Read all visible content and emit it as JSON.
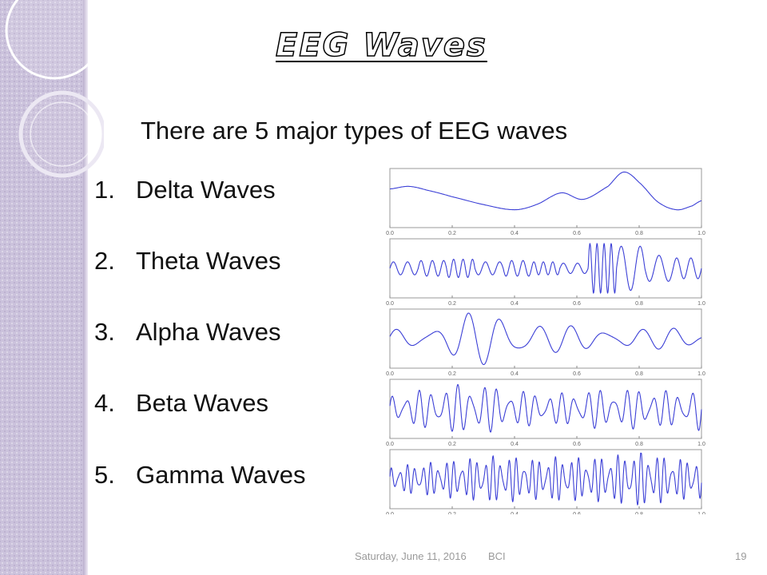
{
  "slide": {
    "title": "EEG Waves",
    "subtitle": "There are 5 major types of EEG waves",
    "list": [
      {
        "num": "1.",
        "label": "Delta Waves"
      },
      {
        "num": "2.",
        "label": "Theta Waves"
      },
      {
        "num": "3.",
        "label": "Alpha Waves"
      },
      {
        "num": "4.",
        "label": "Beta Waves"
      },
      {
        "num": "5.",
        "label": "Gamma Waves"
      }
    ],
    "footer": {
      "date": "Saturday, June 11, 2016",
      "topic": "BCI",
      "page": "19"
    }
  },
  "colors": {
    "side_panel": "#cbc2dc",
    "trace": "#3b3fd6",
    "text": "#111111"
  },
  "chart_data": {
    "type": "line",
    "x_ticks": [
      "0.0",
      "0.2",
      "0.4",
      "0.6",
      "0.8",
      "1.0"
    ],
    "xlim": [
      0,
      1
    ],
    "grid": false,
    "series": [
      {
        "points": [
          [
            0,
            0.35
          ],
          [
            0.06,
            0.45
          ],
          [
            0.12,
            0.3
          ],
          [
            0.2,
            0.05
          ],
          [
            0.3,
            -0.25
          ],
          [
            0.4,
            -0.45
          ],
          [
            0.47,
            -0.25
          ],
          [
            0.55,
            0.2
          ],
          [
            0.62,
            -0.05
          ],
          [
            0.7,
            0.45
          ],
          [
            0.75,
            1.0
          ],
          [
            0.8,
            0.6
          ],
          [
            0.86,
            -0.15
          ],
          [
            0.92,
            -0.45
          ],
          [
            0.97,
            -0.3
          ],
          [
            1.0,
            -0.1
          ]
        ]
      },
      {
        "cycles": [
          2,
          2.5,
          3,
          2,
          2.5,
          3,
          2,
          4,
          1.5,
          1.5,
          2
        ],
        "amps": [
          0.25,
          0.3,
          0.35,
          0.25,
          0.3,
          0.25,
          0.2,
          0.95,
          0.85,
          0.5,
          0.4
        ]
      },
      {
        "cycles": [
          9
        ],
        "amps": [
          0.35,
          0.45,
          0.55,
          0.9,
          1.0,
          0.9,
          0.55,
          0.45,
          0.4,
          0.45,
          0.35,
          0.4,
          0.3
        ]
      },
      {
        "cycles": [
          24
        ],
        "amps": [
          0.5,
          0.65,
          0.8,
          0.95,
          0.7,
          0.6,
          0.55,
          0.7,
          0.65,
          0.75,
          0.6,
          0.8
        ]
      },
      {
        "cycles": [
          40
        ],
        "amps": [
          0.45,
          0.55,
          0.65,
          0.75,
          0.85,
          0.7,
          0.8,
          0.75,
          0.85,
          1.0,
          0.7,
          0.75
        ]
      }
    ]
  }
}
